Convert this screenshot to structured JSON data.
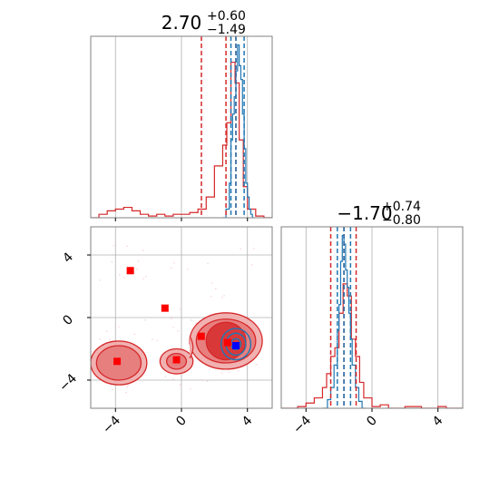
{
  "colors": {
    "red": "#d62728",
    "blue": "#1f77b4",
    "marker_red": "#ff0000",
    "marker_blue": "#0000ff",
    "fill_red_light": "#efa9a9",
    "fill_red_mid": "#e57373",
    "fill_red_dark": "#d62728",
    "grid": "#b0b0b0",
    "frame": "#808080"
  },
  "chart_data": [
    {
      "type": "histogram",
      "panel": "marginal-x1",
      "title": {
        "value": "2.70",
        "plus": "+0.60",
        "minus": "−1.49"
      },
      "xlim": [
        -5.5,
        5.5
      ],
      "xticks": [
        -4,
        0,
        4
      ],
      "quantile_lines": {
        "red": [
          1.21,
          2.7,
          3.3
        ],
        "blue": [
          3.0,
          3.3,
          3.8
        ]
      },
      "series": [
        {
          "name": "",
          "color": "#d62728",
          "x": [
            -5.5,
            -5.0,
            -4.5,
            -4.0,
            -3.5,
            -3.0,
            -2.5,
            -2.0,
            -1.5,
            -1.0,
            -0.5,
            0.0,
            0.5,
            1.0,
            1.5,
            2.0,
            2.5,
            2.75,
            3.0,
            3.25,
            3.5,
            3.75,
            4.0,
            4.5,
            5.0
          ],
          "y": [
            0.0,
            0.02,
            0.04,
            0.05,
            0.06,
            0.04,
            0.02,
            0.01,
            0.02,
            0.01,
            0.02,
            0.02,
            0.03,
            0.05,
            0.12,
            0.3,
            0.42,
            0.55,
            0.9,
            0.78,
            0.45,
            0.18,
            0.05,
            0.01,
            0.0
          ]
        },
        {
          "name": "",
          "color": "#1f77b4",
          "x": [
            2.5,
            2.7,
            2.9,
            3.0,
            3.1,
            3.2,
            3.3,
            3.4,
            3.5,
            3.6,
            3.7,
            3.8,
            3.9,
            4.0,
            4.1,
            4.2,
            4.3
          ],
          "y": [
            0.0,
            0.05,
            0.2,
            0.45,
            0.6,
            0.7,
            0.85,
            1.0,
            0.88,
            0.8,
            0.6,
            0.4,
            0.2,
            0.12,
            0.05,
            0.02,
            0.0
          ]
        }
      ]
    },
    {
      "type": "scatter",
      "panel": "joint",
      "xlim": [
        -5.5,
        5.5
      ],
      "ylim": [
        -5.8,
        5.8
      ],
      "xticks": [
        -4,
        0,
        4
      ],
      "yticks": [
        -4,
        0,
        4
      ],
      "contours_red": [
        {
          "cx": -3.8,
          "cy": -2.9,
          "rx": [
            1.7,
            1.35
          ],
          "ry": [
            1.4,
            1.1
          ]
        },
        {
          "cx": -0.3,
          "cy": -2.8,
          "rx": [
            1.0,
            0.6
          ],
          "ry": [
            0.8,
            0.5
          ]
        },
        {
          "cx": 2.7,
          "cy": -1.5,
          "rx": [
            2.2,
            1.8,
            1.2
          ],
          "ry": [
            1.8,
            1.4,
            1.2
          ]
        }
      ],
      "contours_blue": [
        {
          "cx": 3.3,
          "cy": -1.7,
          "rx": [
            0.9,
            0.6,
            0.3
          ],
          "ry": [
            1.0,
            0.7,
            0.35
          ]
        }
      ],
      "points_red": [
        {
          "x": -3.1,
          "y": 3.0
        },
        {
          "x": -1.0,
          "y": 0.6
        },
        {
          "x": 1.2,
          "y": -1.2
        },
        {
          "x": -3.9,
          "y": -2.8
        },
        {
          "x": -0.3,
          "y": -2.7
        },
        {
          "x": 2.8,
          "y": -1.6
        }
      ],
      "points_blue": [
        {
          "x": 3.3,
          "y": -1.8
        }
      ]
    },
    {
      "type": "histogram",
      "panel": "marginal-x2",
      "title": {
        "value": "−1.70",
        "plus": "+0.74",
        "minus": "−0.80"
      },
      "xlim": [
        -5.5,
        5.5
      ],
      "xticks": [
        -4,
        0,
        4
      ],
      "quantile_lines": {
        "red": [
          -2.5,
          -1.7,
          -0.96
        ],
        "blue": [
          -2.1,
          -1.7,
          -1.3
        ]
      },
      "series": [
        {
          "name": "",
          "color": "#d62728",
          "x": [
            -5.5,
            -4.5,
            -4.0,
            -3.5,
            -3.0,
            -2.75,
            -2.5,
            -2.25,
            -2.0,
            -1.75,
            -1.5,
            -1.25,
            -1.0,
            -0.75,
            -0.5,
            0.0,
            0.5,
            1.0,
            2.0,
            3.0,
            4.0,
            4.5,
            5.0
          ],
          "y": [
            0.0,
            0.01,
            0.03,
            0.06,
            0.12,
            0.2,
            0.3,
            0.35,
            0.55,
            0.72,
            0.65,
            0.4,
            0.3,
            0.15,
            0.06,
            0.01,
            0.02,
            0.0,
            0.01,
            0.0,
            0.01,
            0.0,
            0.0
          ]
        },
        {
          "name": "",
          "color": "#1f77b4",
          "x": [
            -3.0,
            -2.7,
            -2.5,
            -2.3,
            -2.1,
            -2.0,
            -1.9,
            -1.8,
            -1.7,
            -1.6,
            -1.5,
            -1.4,
            -1.3,
            -1.2,
            -1.0,
            -0.8,
            -0.6
          ],
          "y": [
            0.0,
            0.05,
            0.12,
            0.25,
            0.45,
            0.6,
            0.85,
            1.0,
            0.95,
            0.8,
            0.7,
            0.55,
            0.4,
            0.25,
            0.12,
            0.04,
            0.0
          ]
        }
      ]
    }
  ]
}
